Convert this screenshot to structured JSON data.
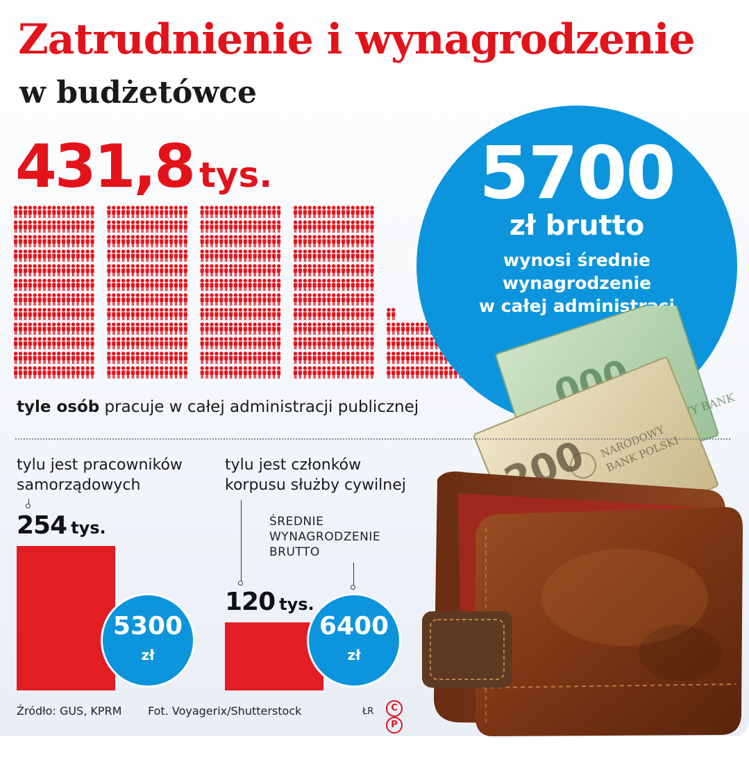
{
  "title": "Zatrudnienie i wynagrodzenie",
  "subtitle": "w budżetówce",
  "total": {
    "value": "431,8",
    "unit": "tys."
  },
  "people_caption": {
    "bold": "tyle osób",
    "rest": " pracuje w całej administracji publicznej"
  },
  "avg_salary": {
    "value": "5700",
    "unit": "zł brutto",
    "desc_line1": "wynosi średnie",
    "desc_line2": "wynagrodzenie",
    "desc_line3": "w całej administracj"
  },
  "salary_label": {
    "line1": "ŚREDNIE",
    "line2": "WYNAGRODZENIE",
    "line3": "BRUTTO"
  },
  "footer": {
    "source": "Źródło: GUS, KPRM",
    "photo": "Fot. Voyagerix/Shutterstock",
    "author": "ŁR",
    "c_mark": "C",
    "p_mark": "P"
  },
  "colors": {
    "red": "#e3131b",
    "blue": "#0c95dc"
  },
  "photo_description_icon": "wallet-with-banknotes-photo",
  "chart_data": [
    {
      "type": "bar",
      "categories": [
        "tylu jest pracowników samorządowych",
        "tylu jest członków korpusu służby cywilnej"
      ],
      "series": [
        {
          "values": [
            254,
            120
          ]
        }
      ],
      "value_labels": [
        {
          "num": "254",
          "unit": "tys."
        },
        {
          "num": "120",
          "unit": "tys."
        }
      ],
      "category_label_lines": [
        [
          "tylu jest pracowników",
          "samorządowych"
        ],
        [
          "tylu jest członków",
          "korpusu służby cywilnej"
        ]
      ],
      "salaries": [
        {
          "value": 5300,
          "display": "5300",
          "unit": "zł"
        },
        {
          "value": 6400,
          "display": "6400",
          "unit": "zł"
        }
      ],
      "ylim": [
        0,
        254
      ]
    },
    {
      "type": "pictogram",
      "total": 431.8,
      "unit": "tys.",
      "groups": 5
    }
  ]
}
